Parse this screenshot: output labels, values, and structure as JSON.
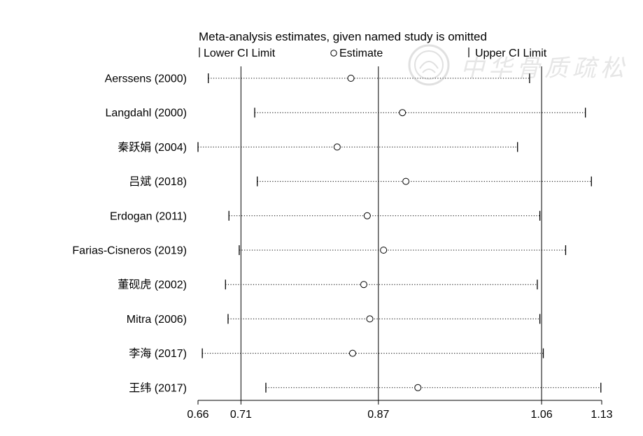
{
  "chart_data": {
    "type": "forest",
    "title": "Meta-analysis estimates, given named study is omitted",
    "legend": {
      "lower": "Lower CI Limit",
      "estimate": "Estimate",
      "upper": "Upper CI Limit",
      "placement": "top"
    },
    "x_ticks": [
      "0.66",
      "0.71",
      "0.87",
      "1.06",
      "1.13"
    ],
    "xlim": [
      0.66,
      1.13
    ],
    "reference_lines": [
      0.71,
      0.87,
      1.06
    ],
    "studies": [
      {
        "name": "Aerssens (2000)",
        "lower": 0.672,
        "estimate": 0.838,
        "upper": 1.046
      },
      {
        "name": "Langdahl (2000)",
        "lower": 0.726,
        "estimate": 0.898,
        "upper": 1.111
      },
      {
        "name": "秦跃娟 (2004)",
        "lower": 0.66,
        "estimate": 0.822,
        "upper": 1.032
      },
      {
        "name": "吕斌 (2018)",
        "lower": 0.729,
        "estimate": 0.902,
        "upper": 1.118
      },
      {
        "name": "Erdogan (2011)",
        "lower": 0.696,
        "estimate": 0.857,
        "upper": 1.058
      },
      {
        "name": "Farias-Cisneros (2019)",
        "lower": 0.708,
        "estimate": 0.876,
        "upper": 1.088
      },
      {
        "name": "董砚虎 (2002)",
        "lower": 0.692,
        "estimate": 0.853,
        "upper": 1.055
      },
      {
        "name": "Mitra (2006)",
        "lower": 0.695,
        "estimate": 0.86,
        "upper": 1.058
      },
      {
        "name": "李海 (2017)",
        "lower": 0.665,
        "estimate": 0.84,
        "upper": 1.062
      },
      {
        "name": "王纬  (2017)",
        "lower": 0.739,
        "estimate": 0.916,
        "upper": 1.129
      }
    ]
  },
  "watermark": {
    "text": "中华骨质疏松"
  }
}
